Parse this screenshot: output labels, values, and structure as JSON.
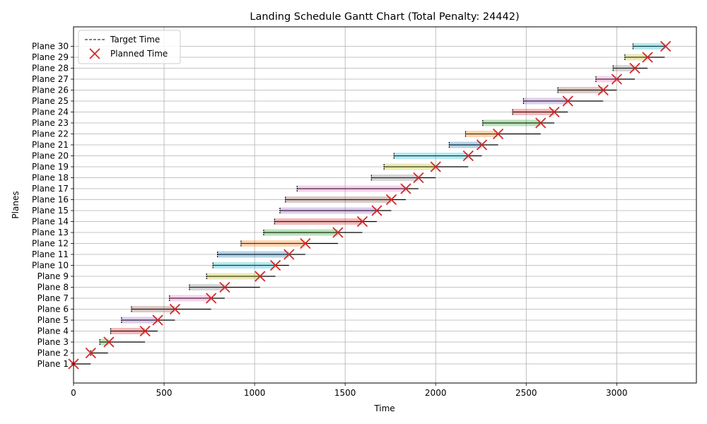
{
  "chart_data": {
    "type": "gantt",
    "title": "Landing Schedule Gantt Chart (Total Penalty: 24442)",
    "xlabel": "Time",
    "ylabel": "Planes",
    "xlim": [
      0,
      3440
    ],
    "x_ticks": [
      0,
      500,
      1000,
      1500,
      2000,
      2500,
      3000
    ],
    "grid": true,
    "legend": {
      "position": "top-left",
      "entries": [
        "Target Time",
        "Planned Time"
      ]
    },
    "colors": {
      "window_line": "#000000",
      "planned_marker": "#d62728",
      "palette": [
        "#1f77b4",
        "#ff7f0e",
        "#2ca02c",
        "#d62728",
        "#9467bd",
        "#8c564b",
        "#e377c2",
        "#7f7f7f",
        "#bcbd22",
        "#17becf"
      ]
    },
    "planes": [
      {
        "name": "Plane 1",
        "earliest": 0,
        "target": 0,
        "latest": 95,
        "planned": 0
      },
      {
        "name": "Plane 2",
        "earliest": 90,
        "target": 95,
        "latest": 190,
        "planned": 95
      },
      {
        "name": "Plane 3",
        "earliest": 145,
        "target": 145,
        "latest": 395,
        "planned": 195
      },
      {
        "name": "Plane 4",
        "earliest": 205,
        "target": 205,
        "latest": 465,
        "planned": 395
      },
      {
        "name": "Plane 5",
        "earliest": 265,
        "target": 265,
        "latest": 560,
        "planned": 465
      },
      {
        "name": "Plane 6",
        "earliest": 320,
        "target": 320,
        "latest": 760,
        "planned": 560
      },
      {
        "name": "Plane 7",
        "earliest": 530,
        "target": 530,
        "latest": 835,
        "planned": 760
      },
      {
        "name": "Plane 8",
        "earliest": 640,
        "target": 640,
        "latest": 1030,
        "planned": 835
      },
      {
        "name": "Plane 9",
        "earliest": 735,
        "target": 735,
        "latest": 1115,
        "planned": 1030
      },
      {
        "name": "Plane 10",
        "earliest": 770,
        "target": 770,
        "latest": 1190,
        "planned": 1115
      },
      {
        "name": "Plane 11",
        "earliest": 795,
        "target": 795,
        "latest": 1280,
        "planned": 1190
      },
      {
        "name": "Plane 12",
        "earliest": 925,
        "target": 925,
        "latest": 1460,
        "planned": 1280
      },
      {
        "name": "Plane 13",
        "earliest": 1050,
        "target": 1050,
        "latest": 1595,
        "planned": 1460
      },
      {
        "name": "Plane 14",
        "earliest": 1110,
        "target": 1110,
        "latest": 1675,
        "planned": 1595
      },
      {
        "name": "Plane 15",
        "earliest": 1140,
        "target": 1140,
        "latest": 1755,
        "planned": 1675
      },
      {
        "name": "Plane 16",
        "earliest": 1170,
        "target": 1170,
        "latest": 1835,
        "planned": 1755
      },
      {
        "name": "Plane 17",
        "earliest": 1235,
        "target": 1235,
        "latest": 1905,
        "planned": 1835
      },
      {
        "name": "Plane 18",
        "earliest": 1645,
        "target": 1645,
        "latest": 2000,
        "planned": 1905
      },
      {
        "name": "Plane 19",
        "earliest": 1715,
        "target": 1715,
        "latest": 2180,
        "planned": 2000
      },
      {
        "name": "Plane 20",
        "earliest": 1770,
        "target": 1770,
        "latest": 2255,
        "planned": 2180
      },
      {
        "name": "Plane 21",
        "earliest": 2075,
        "target": 2075,
        "latest": 2345,
        "planned": 2255
      },
      {
        "name": "Plane 22",
        "earliest": 2165,
        "target": 2165,
        "latest": 2580,
        "planned": 2345
      },
      {
        "name": "Plane 23",
        "earliest": 2260,
        "target": 2260,
        "latest": 2655,
        "planned": 2580
      },
      {
        "name": "Plane 24",
        "earliest": 2425,
        "target": 2425,
        "latest": 2730,
        "planned": 2655
      },
      {
        "name": "Plane 25",
        "earliest": 2485,
        "target": 2485,
        "latest": 2925,
        "planned": 2730
      },
      {
        "name": "Plane 26",
        "earliest": 2675,
        "target": 2675,
        "latest": 3000,
        "planned": 2925
      },
      {
        "name": "Plane 27",
        "earliest": 2885,
        "target": 2885,
        "latest": 3100,
        "planned": 3000
      },
      {
        "name": "Plane 28",
        "earliest": 2980,
        "target": 2980,
        "latest": 3170,
        "planned": 3100
      },
      {
        "name": "Plane 29",
        "earliest": 3045,
        "target": 3045,
        "latest": 3265,
        "planned": 3170
      },
      {
        "name": "Plane 30",
        "earliest": 3090,
        "target": 3090,
        "latest": 3270,
        "planned": 3270
      }
    ]
  }
}
